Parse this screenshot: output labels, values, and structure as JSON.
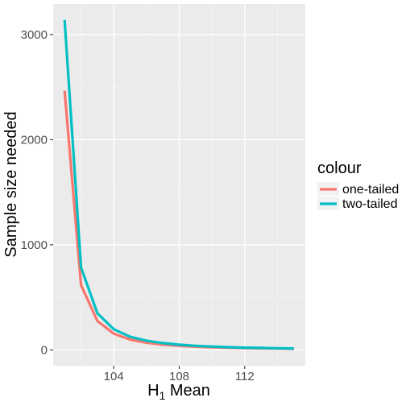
{
  "chart_data": {
    "type": "line",
    "xlabel_main": "H",
    "xlabel_sub": "1",
    "xlabel_rest": " Mean",
    "ylabel": "Sample size needed",
    "xlim": [
      100.3,
      115.7
    ],
    "ylim": [
      -150,
      3290
    ],
    "x_ticks": [
      104,
      108,
      112
    ],
    "x_minor_ticks": [
      102,
      106,
      110,
      114
    ],
    "y_ticks": [
      0,
      1000,
      2000,
      3000
    ],
    "y_minor_ticks": [
      500,
      1500,
      2500
    ],
    "grid": true,
    "legend_title": "colour",
    "legend_position": "right",
    "x": [
      101,
      102,
      103,
      104,
      105,
      106,
      107,
      108,
      109,
      110,
      111,
      112,
      113,
      114,
      115
    ],
    "series": [
      {
        "name": "one-tailed",
        "color": "#F8766D",
        "values": [
          2465,
          617,
          275,
          155,
          99,
          69,
          51,
          39,
          31,
          25,
          21,
          18,
          15,
          13,
          11
        ]
      },
      {
        "name": "two-tailed",
        "color": "#00BFC4",
        "values": [
          3140,
          785,
          349,
          197,
          126,
          88,
          65,
          50,
          39,
          32,
          26,
          22,
          19,
          16,
          14
        ]
      }
    ]
  }
}
